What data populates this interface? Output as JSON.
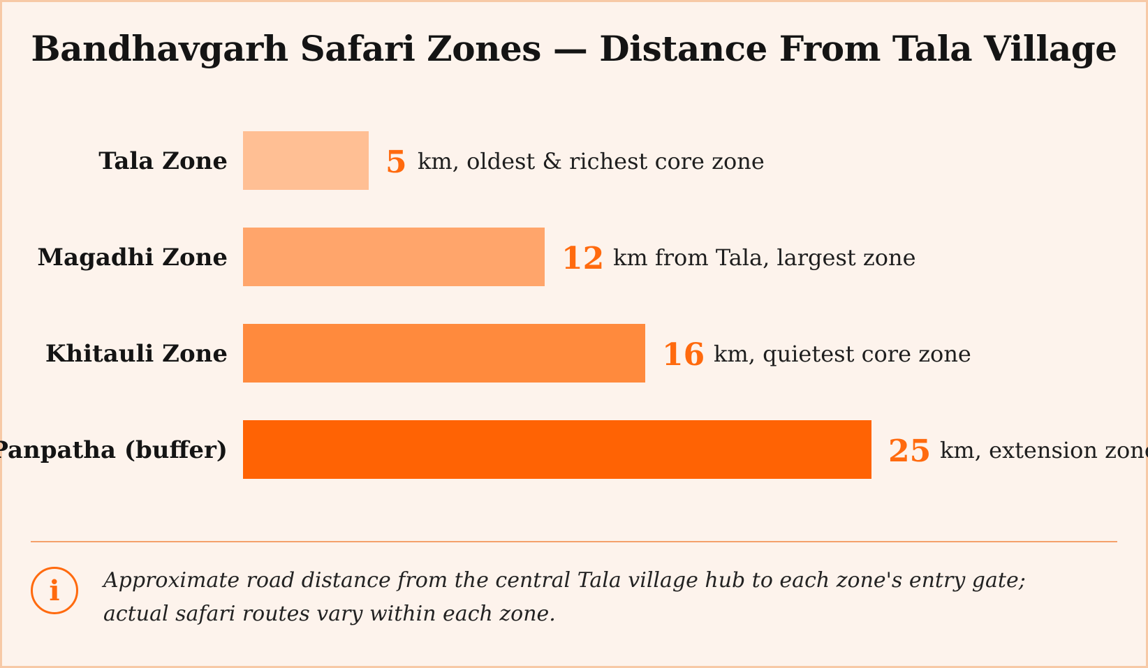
{
  "title": "Bandhavgarh Safari Zones — Distance From Tala Village",
  "note": {
    "line1": "Approximate road distance from the central Tala village hub to each zone's entry gate;",
    "line2": "actual safari routes vary within each zone."
  },
  "chart_data": {
    "type": "bar",
    "orientation": "horizontal",
    "title": "Bandhavgarh Safari Zones — Distance From Tala Village",
    "xlabel": "",
    "ylabel": "",
    "grid": false,
    "legend": "none",
    "unit": "km",
    "categories": [
      "Tala Zone",
      "Magadhi Zone",
      "Khitauli Zone",
      "Panpatha (buffer)"
    ],
    "values": [
      5,
      12,
      16,
      25
    ],
    "annotations": [
      "km, oldest & richest core zone",
      "km from Tala, largest zone",
      "km, quietest core zone",
      "km, extension zone"
    ],
    "bar_colors": [
      "#ffbf94",
      "#ffa56b",
      "#ff8a3d",
      "#ff6304"
    ],
    "value_label_color": "#ff6a0e"
  }
}
